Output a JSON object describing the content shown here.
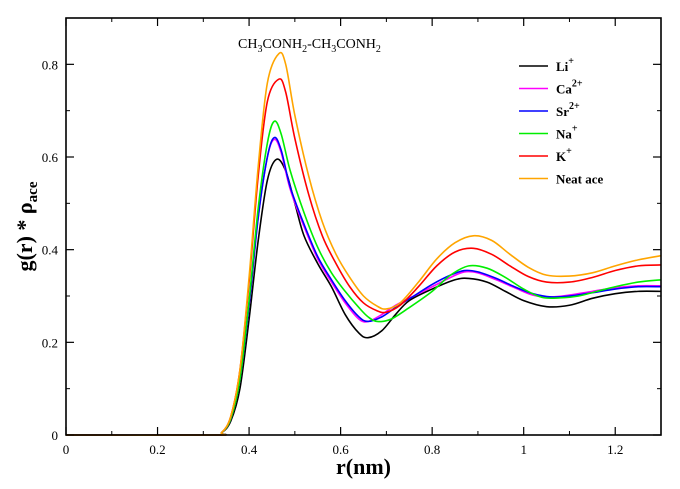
{
  "chart_data": {
    "type": "line",
    "title": "",
    "annotation": {
      "parts": [
        "CH",
        "3",
        "CONH",
        "2",
        "-CH",
        "3",
        "CONH",
        "2"
      ]
    },
    "xlabel": "r(nm)",
    "ylabel": {
      "main": "g(r) *  ρ",
      "sub": "ace"
    },
    "xlim": [
      0,
      1.3
    ],
    "ylim": [
      0,
      0.9
    ],
    "xticks": [
      0,
      0.2,
      0.4,
      0.6,
      0.8,
      1,
      1.2
    ],
    "xtick_labels": [
      "0",
      "0.2",
      "0.4",
      "0.6",
      "0.8",
      "1",
      "1.2"
    ],
    "yticks": [
      0,
      0.2,
      0.4,
      0.6,
      0.8
    ],
    "ytick_labels": [
      "0",
      "0.2",
      "0.4",
      "0.6",
      "0.8"
    ],
    "grid": false,
    "legend_position": "top-right",
    "series": [
      {
        "name": "Li",
        "sup": "+",
        "color": "#000000",
        "x": [
          0,
          0.32,
          0.34,
          0.36,
          0.38,
          0.4,
          0.42,
          0.44,
          0.46,
          0.48,
          0.5,
          0.52,
          0.55,
          0.58,
          0.61,
          0.64,
          0.66,
          0.69,
          0.72,
          0.75,
          0.8,
          0.85,
          0.88,
          0.92,
          0.96,
          1.0,
          1.05,
          1.1,
          1.15,
          1.2,
          1.25,
          1.3
        ],
        "y": [
          0,
          0,
          0.005,
          0.03,
          0.1,
          0.25,
          0.42,
          0.55,
          0.595,
          0.57,
          0.5,
          0.43,
          0.37,
          0.32,
          0.26,
          0.22,
          0.21,
          0.225,
          0.26,
          0.29,
          0.315,
          0.335,
          0.338,
          0.33,
          0.31,
          0.29,
          0.277,
          0.28,
          0.295,
          0.305,
          0.31,
          0.31
        ]
      },
      {
        "name": "Ca",
        "sup": "2+",
        "color": "#ff00ff",
        "x": [
          0,
          0.32,
          0.34,
          0.36,
          0.38,
          0.4,
          0.42,
          0.44,
          0.455,
          0.47,
          0.49,
          0.52,
          0.55,
          0.58,
          0.61,
          0.64,
          0.66,
          0.69,
          0.72,
          0.76,
          0.8,
          0.84,
          0.87,
          0.9,
          0.94,
          0.98,
          1.02,
          1.06,
          1.1,
          1.15,
          1.2,
          1.25,
          1.3
        ],
        "y": [
          0,
          0,
          0.005,
          0.035,
          0.12,
          0.28,
          0.47,
          0.6,
          0.638,
          0.61,
          0.53,
          0.45,
          0.38,
          0.33,
          0.285,
          0.25,
          0.245,
          0.26,
          0.28,
          0.3,
          0.32,
          0.34,
          0.352,
          0.35,
          0.335,
          0.318,
          0.302,
          0.298,
          0.302,
          0.31,
          0.318,
          0.322,
          0.322
        ]
      },
      {
        "name": "Sr",
        "sup": "2+",
        "color": "#0000ff",
        "x": [
          0,
          0.32,
          0.34,
          0.36,
          0.38,
          0.4,
          0.42,
          0.44,
          0.455,
          0.47,
          0.49,
          0.52,
          0.55,
          0.58,
          0.61,
          0.64,
          0.66,
          0.69,
          0.72,
          0.76,
          0.8,
          0.84,
          0.87,
          0.9,
          0.94,
          0.98,
          1.02,
          1.06,
          1.1,
          1.15,
          1.2,
          1.25,
          1.3
        ],
        "y": [
          0,
          0,
          0.005,
          0.035,
          0.12,
          0.28,
          0.47,
          0.6,
          0.642,
          0.615,
          0.535,
          0.455,
          0.385,
          0.335,
          0.29,
          0.255,
          0.245,
          0.255,
          0.275,
          0.3,
          0.325,
          0.345,
          0.355,
          0.352,
          0.338,
          0.32,
          0.305,
          0.298,
          0.3,
          0.307,
          0.315,
          0.32,
          0.32
        ]
      },
      {
        "name": "Na",
        "sup": "+",
        "color": "#00ee00",
        "x": [
          0,
          0.32,
          0.34,
          0.36,
          0.38,
          0.4,
          0.42,
          0.44,
          0.455,
          0.47,
          0.49,
          0.52,
          0.55,
          0.58,
          0.61,
          0.64,
          0.66,
          0.68,
          0.71,
          0.75,
          0.8,
          0.84,
          0.88,
          0.92,
          0.96,
          1.0,
          1.04,
          1.08,
          1.12,
          1.16,
          1.2,
          1.25,
          1.3
        ],
        "y": [
          0,
          0,
          0.005,
          0.035,
          0.12,
          0.29,
          0.49,
          0.63,
          0.677,
          0.65,
          0.57,
          0.48,
          0.405,
          0.35,
          0.31,
          0.275,
          0.255,
          0.245,
          0.25,
          0.275,
          0.31,
          0.345,
          0.365,
          0.36,
          0.34,
          0.315,
          0.297,
          0.296,
          0.3,
          0.31,
          0.32,
          0.33,
          0.335
        ]
      },
      {
        "name": "K",
        "sup": "+",
        "color": "#ff0000",
        "x": [
          0,
          0.32,
          0.34,
          0.36,
          0.38,
          0.4,
          0.42,
          0.44,
          0.465,
          0.48,
          0.5,
          0.53,
          0.56,
          0.59,
          0.62,
          0.65,
          0.68,
          0.7,
          0.73,
          0.77,
          0.81,
          0.85,
          0.89,
          0.93,
          0.97,
          1.01,
          1.05,
          1.1,
          1.15,
          1.2,
          1.25,
          1.3
        ],
        "y": [
          0,
          0,
          0.005,
          0.04,
          0.14,
          0.33,
          0.56,
          0.72,
          0.768,
          0.74,
          0.64,
          0.52,
          0.43,
          0.37,
          0.32,
          0.285,
          0.268,
          0.265,
          0.28,
          0.32,
          0.365,
          0.395,
          0.403,
          0.39,
          0.365,
          0.342,
          0.33,
          0.33,
          0.34,
          0.355,
          0.365,
          0.367
        ]
      },
      {
        "name": "Neat ace",
        "sup": "",
        "color": "#ffa500",
        "x": [
          0,
          0.32,
          0.34,
          0.36,
          0.38,
          0.4,
          0.42,
          0.44,
          0.465,
          0.48,
          0.5,
          0.53,
          0.56,
          0.59,
          0.62,
          0.65,
          0.68,
          0.7,
          0.73,
          0.77,
          0.81,
          0.85,
          0.89,
          0.93,
          0.97,
          1.01,
          1.05,
          1.1,
          1.15,
          1.2,
          1.25,
          1.3
        ],
        "y": [
          0,
          0,
          0.005,
          0.04,
          0.14,
          0.34,
          0.58,
          0.76,
          0.823,
          0.8,
          0.69,
          0.56,
          0.46,
          0.39,
          0.34,
          0.3,
          0.278,
          0.272,
          0.285,
          0.33,
          0.38,
          0.415,
          0.43,
          0.42,
          0.39,
          0.362,
          0.345,
          0.343,
          0.35,
          0.365,
          0.378,
          0.387
        ]
      }
    ]
  }
}
